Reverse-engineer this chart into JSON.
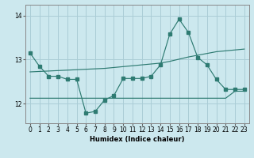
{
  "xlabel": "Humidex (Indice chaleur)",
  "bg_color": "#cce8ee",
  "grid_color": "#aacdd6",
  "line_color": "#2e7b72",
  "x_ticks": [
    0,
    1,
    2,
    3,
    4,
    5,
    6,
    7,
    8,
    9,
    10,
    11,
    12,
    13,
    14,
    15,
    16,
    17,
    18,
    19,
    20,
    21,
    22,
    23
  ],
  "y_ticks": [
    12,
    13,
    14
  ],
  "ylim": [
    11.55,
    14.25
  ],
  "xlim": [
    -0.5,
    23.5
  ],
  "line1_x": [
    0,
    1,
    2,
    3,
    4,
    5,
    6,
    7,
    8,
    9,
    10,
    11,
    12,
    13,
    14,
    15,
    16,
    17,
    18,
    19,
    20,
    21,
    22,
    23
  ],
  "line1_y": [
    13.15,
    12.85,
    12.62,
    12.62,
    12.55,
    12.55,
    11.78,
    11.82,
    12.08,
    12.18,
    12.57,
    12.57,
    12.57,
    12.62,
    12.88,
    13.58,
    13.92,
    13.62,
    13.05,
    12.88,
    12.55,
    12.32,
    12.32,
    12.32
  ],
  "line2_full_x": [
    0,
    1,
    2,
    3,
    4,
    5,
    6,
    7,
    8,
    9,
    10,
    11,
    12,
    13,
    14,
    15,
    16,
    17,
    18,
    19,
    20,
    21,
    22,
    23
  ],
  "line2_full_y": [
    12.12,
    12.12,
    12.12,
    12.12,
    12.12,
    12.12,
    12.12,
    12.12,
    12.12,
    12.12,
    12.12,
    12.12,
    12.12,
    12.12,
    12.12,
    12.12,
    12.12,
    12.12,
    12.12,
    12.12,
    12.12,
    12.12,
    12.28,
    12.28
  ],
  "line3_x": [
    0,
    1,
    2,
    3,
    4,
    5,
    6,
    7,
    8,
    9,
    10,
    11,
    12,
    13,
    14,
    15,
    16,
    17,
    18,
    19,
    20,
    21,
    22,
    23
  ],
  "line3_y": [
    12.72,
    12.73,
    12.74,
    12.75,
    12.76,
    12.77,
    12.78,
    12.79,
    12.8,
    12.82,
    12.84,
    12.86,
    12.88,
    12.9,
    12.92,
    12.96,
    13.01,
    13.06,
    13.1,
    13.14,
    13.18,
    13.2,
    13.22,
    13.24
  ]
}
